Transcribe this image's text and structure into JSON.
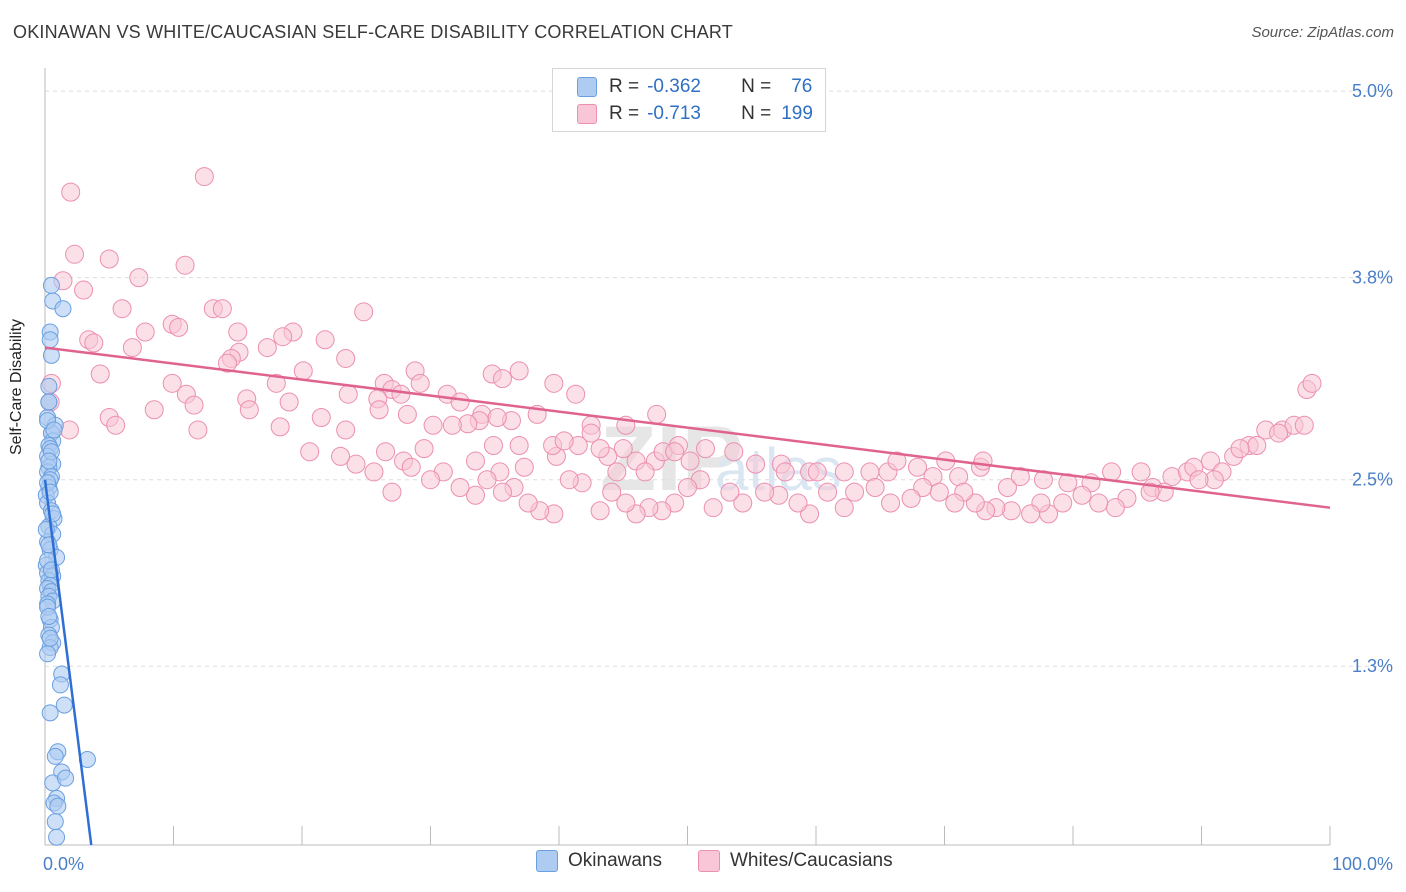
{
  "title": "OKINAWAN VS WHITE/CAUCASIAN SELF-CARE DISABILITY CORRELATION CHART",
  "source": "Source: ZipAtlas.com",
  "colors": {
    "blue_fill": "#aecbf2",
    "blue_stroke": "#6a9fe0",
    "blue_line": "#2f6fd4",
    "pink_fill": "#f8c6d6",
    "pink_stroke": "#ec8fb0",
    "pink_line": "#e0628f",
    "tick_text": "#4a7fc7",
    "grid": "#dddddd"
  },
  "legend": {
    "rows": [
      {
        "r_label": "R =",
        "r_value": "-0.362",
        "n_label": "N =",
        "n_value": "76"
      },
      {
        "r_label": "R =",
        "r_value": "-0.713",
        "n_label": "N =",
        "n_value": "199"
      }
    ]
  },
  "bottom_legend": {
    "series1": "Okinawans",
    "series2": "Whites/Caucasians"
  },
  "chart_data": {
    "type": "scatter",
    "title": "OKINAWAN VS WHITE/CAUCASIAN SELF-CARE DISABILITY CORRELATION CHART",
    "xlabel": "",
    "ylabel": "Self-Care Disability",
    "xlim": [
      0,
      100
    ],
    "ylim": [
      0.15,
      5.2
    ],
    "x_tick_labels": [
      "0.0%",
      "100.0%"
    ],
    "y_ticks": [
      1.3,
      2.5,
      3.8,
      5.0
    ],
    "y_tick_labels": [
      "1.3%",
      "2.5%",
      "3.8%",
      "5.0%"
    ],
    "grid": true,
    "legend_placement": "top-center",
    "watermark": "ZIPatlas",
    "series": [
      {
        "name": "Okinawans",
        "r": -0.362,
        "n": 76,
        "trendline": {
          "x": [
            0.0,
            3.6
          ],
          "y": [
            2.5,
            0.15
          ]
        },
        "points": [
          [
            0.6,
            3.65
          ],
          [
            0.5,
            3.75
          ],
          [
            1.4,
            3.6
          ],
          [
            0.4,
            3.45
          ],
          [
            0.5,
            3.3
          ],
          [
            0.3,
            3.1
          ],
          [
            0.3,
            3.0
          ],
          [
            0.2,
            2.9
          ],
          [
            0.8,
            2.85
          ],
          [
            0.5,
            2.8
          ],
          [
            0.6,
            2.75
          ],
          [
            0.3,
            2.72
          ],
          [
            0.4,
            2.7
          ],
          [
            0.2,
            2.65
          ],
          [
            0.6,
            2.6
          ],
          [
            0.3,
            2.58
          ],
          [
            0.2,
            2.55
          ],
          [
            0.5,
            2.52
          ],
          [
            0.4,
            2.5
          ],
          [
            0.3,
            2.45
          ],
          [
            0.1,
            2.4
          ],
          [
            0.2,
            2.35
          ],
          [
            0.5,
            2.3
          ],
          [
            0.7,
            2.25
          ],
          [
            0.3,
            2.2
          ],
          [
            0.6,
            2.15
          ],
          [
            0.2,
            2.1
          ],
          [
            0.4,
            2.05
          ],
          [
            0.9,
            2.0
          ],
          [
            0.1,
            1.95
          ],
          [
            0.2,
            1.9
          ],
          [
            0.6,
            1.88
          ],
          [
            0.3,
            1.85
          ],
          [
            0.4,
            1.82
          ],
          [
            0.2,
            1.8
          ],
          [
            0.5,
            1.78
          ],
          [
            0.3,
            1.75
          ],
          [
            0.6,
            1.72
          ],
          [
            0.2,
            1.7
          ],
          [
            0.4,
            1.6
          ],
          [
            0.5,
            1.55
          ],
          [
            0.3,
            1.5
          ],
          [
            0.6,
            1.45
          ],
          [
            0.4,
            1.42
          ],
          [
            0.2,
            1.38
          ],
          [
            1.3,
            1.25
          ],
          [
            1.2,
            1.18
          ],
          [
            1.5,
            1.05
          ],
          [
            0.4,
            1.0
          ],
          [
            1.0,
            0.75
          ],
          [
            0.8,
            0.72
          ],
          [
            3.3,
            0.7
          ],
          [
            1.3,
            0.62
          ],
          [
            0.6,
            0.55
          ],
          [
            1.6,
            0.58
          ],
          [
            0.9,
            0.45
          ],
          [
            0.7,
            0.42
          ],
          [
            1.0,
            0.4
          ],
          [
            0.8,
            0.3
          ],
          [
            0.9,
            0.2
          ],
          [
            0.4,
            3.4
          ],
          [
            0.3,
            3.0
          ],
          [
            0.2,
            2.88
          ],
          [
            0.7,
            2.82
          ],
          [
            0.5,
            2.68
          ],
          [
            0.3,
            2.62
          ],
          [
            0.2,
            2.48
          ],
          [
            0.4,
            2.42
          ],
          [
            0.6,
            2.28
          ],
          [
            0.1,
            2.18
          ],
          [
            0.3,
            2.08
          ],
          [
            0.2,
            1.98
          ],
          [
            0.5,
            1.92
          ],
          [
            0.2,
            1.68
          ],
          [
            0.3,
            1.62
          ],
          [
            0.4,
            1.48
          ]
        ]
      },
      {
        "name": "Whites/Caucasians",
        "r": -0.713,
        "n": 199,
        "trendline": {
          "x": [
            0.0,
            100.0
          ],
          "y": [
            3.35,
            2.32
          ]
        },
        "points": [
          [
            12.4,
            4.45
          ],
          [
            2.0,
            4.35
          ],
          [
            2.3,
            3.95
          ],
          [
            5.0,
            3.92
          ],
          [
            10.9,
            3.88
          ],
          [
            7.3,
            3.8
          ],
          [
            1.4,
            3.78
          ],
          [
            3.0,
            3.72
          ],
          [
            13.1,
            3.6
          ],
          [
            13.8,
            3.6
          ],
          [
            6.0,
            3.6
          ],
          [
            24.8,
            3.58
          ],
          [
            9.9,
            3.5
          ],
          [
            10.4,
            3.48
          ],
          [
            7.8,
            3.45
          ],
          [
            15.0,
            3.45
          ],
          [
            19.3,
            3.45
          ],
          [
            18.5,
            3.42
          ],
          [
            3.4,
            3.4
          ],
          [
            3.8,
            3.38
          ],
          [
            21.8,
            3.4
          ],
          [
            17.3,
            3.35
          ],
          [
            6.8,
            3.35
          ],
          [
            15.1,
            3.32
          ],
          [
            14.5,
            3.28
          ],
          [
            23.4,
            3.28
          ],
          [
            14.2,
            3.25
          ],
          [
            20.1,
            3.2
          ],
          [
            4.3,
            3.18
          ],
          [
            26.4,
            3.12
          ],
          [
            18.0,
            3.12
          ],
          [
            28.8,
            3.2
          ],
          [
            36.9,
            3.2
          ],
          [
            34.8,
            3.18
          ],
          [
            35.6,
            3.15
          ],
          [
            9.9,
            3.12
          ],
          [
            0.5,
            3.12
          ],
          [
            29.2,
            3.12
          ],
          [
            27.0,
            3.08
          ],
          [
            31.3,
            3.05
          ],
          [
            39.6,
            3.12
          ],
          [
            41.3,
            3.05
          ],
          [
            11.0,
            3.05
          ],
          [
            15.7,
            3.02
          ],
          [
            19.0,
            3.0
          ],
          [
            23.6,
            3.05
          ],
          [
            25.9,
            3.02
          ],
          [
            27.7,
            3.05
          ],
          [
            0.4,
            3.0
          ],
          [
            11.6,
            2.98
          ],
          [
            26.0,
            2.95
          ],
          [
            32.3,
            3.0
          ],
          [
            15.9,
            2.95
          ],
          [
            8.5,
            2.95
          ],
          [
            28.2,
            2.92
          ],
          [
            34.0,
            2.92
          ],
          [
            47.6,
            2.92
          ],
          [
            21.5,
            2.9
          ],
          [
            5.0,
            2.9
          ],
          [
            36.3,
            2.88
          ],
          [
            33.8,
            2.88
          ],
          [
            32.9,
            2.86
          ],
          [
            35.2,
            2.9
          ],
          [
            38.3,
            2.92
          ],
          [
            42.5,
            2.85
          ],
          [
            45.2,
            2.85
          ],
          [
            30.2,
            2.85
          ],
          [
            31.7,
            2.85
          ],
          [
            23.4,
            2.82
          ],
          [
            18.3,
            2.84
          ],
          [
            1.9,
            2.82
          ],
          [
            5.5,
            2.85
          ],
          [
            11.9,
            2.82
          ],
          [
            42.5,
            2.8
          ],
          [
            41.5,
            2.72
          ],
          [
            45.0,
            2.7
          ],
          [
            34.9,
            2.72
          ],
          [
            29.5,
            2.7
          ],
          [
            20.6,
            2.68
          ],
          [
            26.5,
            2.68
          ],
          [
            27.9,
            2.62
          ],
          [
            39.8,
            2.65
          ],
          [
            33.5,
            2.62
          ],
          [
            37.3,
            2.58
          ],
          [
            35.4,
            2.55
          ],
          [
            46.0,
            2.62
          ],
          [
            47.5,
            2.62
          ],
          [
            50.2,
            2.62
          ],
          [
            46.7,
            2.55
          ],
          [
            44.5,
            2.55
          ],
          [
            43.8,
            2.65
          ],
          [
            43.2,
            2.7
          ],
          [
            36.9,
            2.72
          ],
          [
            39.5,
            2.72
          ],
          [
            40.4,
            2.75
          ],
          [
            48.1,
            2.68
          ],
          [
            49.3,
            2.72
          ],
          [
            49.0,
            2.68
          ],
          [
            51.4,
            2.7
          ],
          [
            53.6,
            2.68
          ],
          [
            55.3,
            2.6
          ],
          [
            57.3,
            2.6
          ],
          [
            57.6,
            2.55
          ],
          [
            59.5,
            2.55
          ],
          [
            60.1,
            2.55
          ],
          [
            62.2,
            2.55
          ],
          [
            64.2,
            2.55
          ],
          [
            65.6,
            2.55
          ],
          [
            66.3,
            2.62
          ],
          [
            67.9,
            2.58
          ],
          [
            69.1,
            2.52
          ],
          [
            70.1,
            2.62
          ],
          [
            71.1,
            2.52
          ],
          [
            72.8,
            2.58
          ],
          [
            73.0,
            2.62
          ],
          [
            74.9,
            2.45
          ],
          [
            75.9,
            2.52
          ],
          [
            77.7,
            2.5
          ],
          [
            79.6,
            2.48
          ],
          [
            81.4,
            2.48
          ],
          [
            83.0,
            2.55
          ],
          [
            85.3,
            2.55
          ],
          [
            86.2,
            2.45
          ],
          [
            87.7,
            2.52
          ],
          [
            88.9,
            2.55
          ],
          [
            89.4,
            2.58
          ],
          [
            90.7,
            2.62
          ],
          [
            91.6,
            2.55
          ],
          [
            92.5,
            2.65
          ],
          [
            93.7,
            2.72
          ],
          [
            94.3,
            2.72
          ],
          [
            95.0,
            2.82
          ],
          [
            96.3,
            2.82
          ],
          [
            97.2,
            2.85
          ],
          [
            98.0,
            2.85
          ],
          [
            98.2,
            3.08
          ],
          [
            98.6,
            3.12
          ],
          [
            96.0,
            2.8
          ],
          [
            93.0,
            2.7
          ],
          [
            91.0,
            2.5
          ],
          [
            89.8,
            2.5
          ],
          [
            87.1,
            2.42
          ],
          [
            86.0,
            2.42
          ],
          [
            84.2,
            2.38
          ],
          [
            83.3,
            2.32
          ],
          [
            82.0,
            2.35
          ],
          [
            80.7,
            2.4
          ],
          [
            79.2,
            2.35
          ],
          [
            78.1,
            2.28
          ],
          [
            77.5,
            2.35
          ],
          [
            76.7,
            2.28
          ],
          [
            75.2,
            2.3
          ],
          [
            74.0,
            2.32
          ],
          [
            73.2,
            2.3
          ],
          [
            72.4,
            2.35
          ],
          [
            71.5,
            2.42
          ],
          [
            70.8,
            2.35
          ],
          [
            69.6,
            2.42
          ],
          [
            68.3,
            2.45
          ],
          [
            67.4,
            2.38
          ],
          [
            65.8,
            2.35
          ],
          [
            64.6,
            2.45
          ],
          [
            63.0,
            2.42
          ],
          [
            62.2,
            2.32
          ],
          [
            60.9,
            2.42
          ],
          [
            59.5,
            2.28
          ],
          [
            58.6,
            2.35
          ],
          [
            57.1,
            2.4
          ],
          [
            56.0,
            2.42
          ],
          [
            54.3,
            2.35
          ],
          [
            53.3,
            2.42
          ],
          [
            52.0,
            2.32
          ],
          [
            51.0,
            2.5
          ],
          [
            50.0,
            2.45
          ],
          [
            49.0,
            2.35
          ],
          [
            48.0,
            2.3
          ],
          [
            47.0,
            2.32
          ],
          [
            46.0,
            2.28
          ],
          [
            45.2,
            2.35
          ],
          [
            44.1,
            2.42
          ],
          [
            43.2,
            2.3
          ],
          [
            41.8,
            2.48
          ],
          [
            40.8,
            2.5
          ],
          [
            39.6,
            2.28
          ],
          [
            38.5,
            2.3
          ],
          [
            37.6,
            2.35
          ],
          [
            36.5,
            2.45
          ],
          [
            35.6,
            2.42
          ],
          [
            34.4,
            2.5
          ],
          [
            33.5,
            2.4
          ],
          [
            32.3,
            2.45
          ],
          [
            31.0,
            2.55
          ],
          [
            30.0,
            2.5
          ],
          [
            28.5,
            2.58
          ],
          [
            27.0,
            2.42
          ],
          [
            25.6,
            2.55
          ],
          [
            24.2,
            2.6
          ],
          [
            23.0,
            2.65
          ]
        ]
      }
    ]
  }
}
